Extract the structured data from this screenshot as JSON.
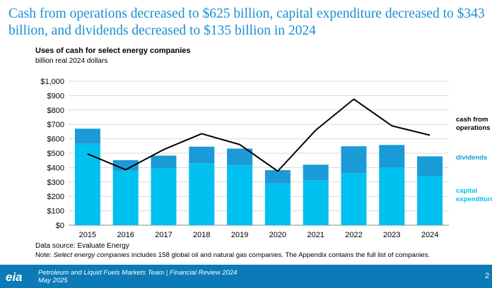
{
  "headline": "Cash from operations decreased to $625 billion, capital expenditure decreased to $343 billion, and dividends decreased to $135 billion in 2024",
  "chart_data": {
    "type": "bar",
    "title": "Uses of cash for select energy companies",
    "subtitle": "billion real 2024 dollars",
    "categories": [
      "2015",
      "2016",
      "2017",
      "2018",
      "2019",
      "2020",
      "2021",
      "2022",
      "2023",
      "2024"
    ],
    "series": [
      {
        "name": "capital expenditure",
        "kind": "stacked-bar",
        "color": "#00c0f0",
        "values": [
          565,
          380,
          395,
          430,
          415,
          290,
          312,
          362,
          402,
          343
        ]
      },
      {
        "name": "dividends",
        "kind": "stacked-bar",
        "color": "#1a9ad6",
        "values": [
          105,
          72,
          88,
          115,
          117,
          92,
          108,
          186,
          155,
          135
        ]
      },
      {
        "name": "cash from operations",
        "kind": "line",
        "color": "#000000",
        "values": [
          495,
          385,
          525,
          635,
          560,
          375,
          660,
          875,
          690,
          625
        ]
      }
    ],
    "yticks": [
      "$0",
      "$100",
      "$200",
      "$300",
      "$400",
      "$500",
      "$600",
      "$700",
      "$800",
      "$900",
      "$1,000"
    ],
    "ylim": [
      0,
      1000
    ],
    "legend": [
      {
        "lines": [
          "cash from",
          "operations"
        ],
        "color": "#000000"
      },
      {
        "lines": [
          "dividends"
        ],
        "color": "#1a9ad6"
      },
      {
        "lines": [
          "capital",
          "expenditure"
        ],
        "color": "#00c0f0"
      }
    ],
    "grid": true
  },
  "source": "Data source: Evaluate Energy",
  "note": {
    "prefix": "Note: ",
    "italic": "Select energy companies",
    "suffix": " includes 158 global oil and natural gas companies. The Appendix contains the full list of companies."
  },
  "footer": {
    "logo": "eia",
    "line1": "Petroleum and Liquid Fuels Markets Team | Financial Review 2024",
    "line2": "May 2025",
    "page": "2"
  },
  "colors": {
    "header_blue": "#1a8fd3",
    "footer_blue": "#0b7ab6"
  }
}
